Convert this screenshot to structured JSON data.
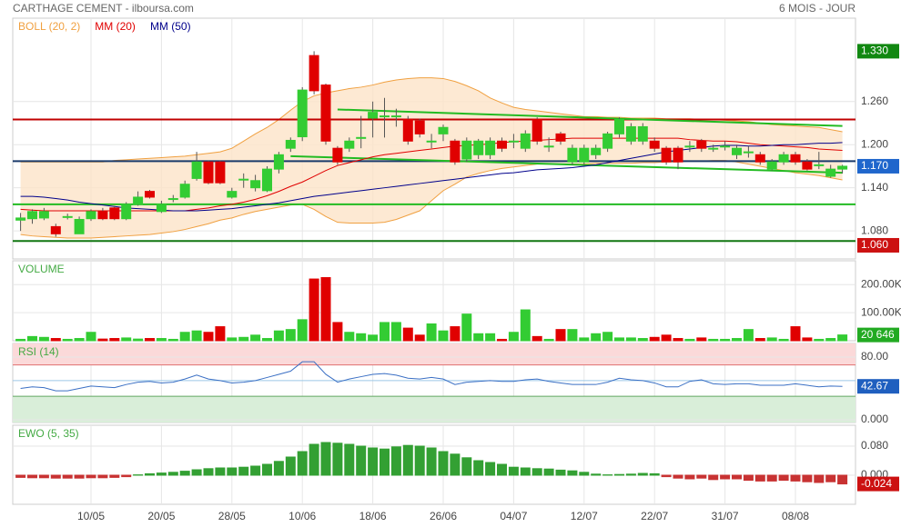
{
  "header": {
    "title": "CARTHAGE CEMENT - ilboursa.com",
    "period": "6 MOIS - JOUR"
  },
  "chart_data": [
    {
      "type": "candlestick",
      "up_color": "#33cc33",
      "down_color": "#e00000",
      "open": [
        1.095,
        1.097,
        1.098,
        1.086,
        1.1,
        1.076,
        1.097,
        1.107,
        1.112,
        1.097,
        1.117,
        1.135,
        1.107,
        1.125,
        1.127,
        1.153,
        1.176,
        1.176,
        1.127,
        1.152,
        1.14,
        1.136,
        1.166,
        1.195,
        1.211,
        1.324,
        1.283,
        1.195,
        1.195,
        1.21,
        1.237,
        1.24,
        1.24,
        1.235,
        1.233,
        1.205,
        1.215,
        1.205,
        1.18,
        1.186,
        1.186,
        1.205,
        1.205,
        1.195,
        1.235,
        1.198,
        1.215,
        1.176,
        1.176,
        1.186,
        1.195,
        1.215,
        1.205,
        1.205,
        1.205,
        1.195,
        1.195,
        1.198,
        1.205,
        1.195,
        1.198,
        1.186,
        1.19,
        1.186,
        1.166,
        1.176,
        1.186,
        1.176,
        1.172,
        1.156,
        1.166
      ],
      "high": [
        1.105,
        1.11,
        1.112,
        1.09,
        1.104,
        1.1,
        1.11,
        1.112,
        1.115,
        1.12,
        1.135,
        1.137,
        1.122,
        1.13,
        1.15,
        1.19,
        1.178,
        1.178,
        1.14,
        1.16,
        1.158,
        1.17,
        1.19,
        1.21,
        1.28,
        1.33,
        1.285,
        1.198,
        1.21,
        1.24,
        1.26,
        1.265,
        1.25,
        1.24,
        1.236,
        1.215,
        1.228,
        1.208,
        1.21,
        1.208,
        1.21,
        1.21,
        1.215,
        1.22,
        1.238,
        1.21,
        1.218,
        1.2,
        1.2,
        1.2,
        1.218,
        1.238,
        1.23,
        1.23,
        1.21,
        1.198,
        1.198,
        1.205,
        1.208,
        1.2,
        1.205,
        1.2,
        1.198,
        1.19,
        1.18,
        1.19,
        1.19,
        1.18,
        1.19,
        1.172,
        1.172
      ],
      "low": [
        1.08,
        1.09,
        1.095,
        1.072,
        1.096,
        1.076,
        1.094,
        1.095,
        1.095,
        1.095,
        1.115,
        1.125,
        1.105,
        1.12,
        1.125,
        1.15,
        1.145,
        1.145,
        1.125,
        1.14,
        1.135,
        1.134,
        1.16,
        1.19,
        1.205,
        1.27,
        1.2,
        1.172,
        1.19,
        1.195,
        1.21,
        1.21,
        1.225,
        1.2,
        1.21,
        1.195,
        1.205,
        1.172,
        1.176,
        1.18,
        1.18,
        1.19,
        1.195,
        1.19,
        1.2,
        1.19,
        1.2,
        1.172,
        1.172,
        1.18,
        1.19,
        1.21,
        1.2,
        1.2,
        1.19,
        1.172,
        1.166,
        1.19,
        1.19,
        1.19,
        1.192,
        1.18,
        1.182,
        1.172,
        1.164,
        1.172,
        1.172,
        1.164,
        1.166,
        1.154,
        1.16
      ],
      "close": [
        1.098,
        1.107,
        1.107,
        1.076,
        1.1,
        1.096,
        1.107,
        1.097,
        1.097,
        1.117,
        1.127,
        1.127,
        1.117,
        1.125,
        1.145,
        1.176,
        1.147,
        1.147,
        1.135,
        1.152,
        1.15,
        1.166,
        1.186,
        1.206,
        1.276,
        1.275,
        1.205,
        1.176,
        1.205,
        1.21,
        1.245,
        1.24,
        1.24,
        1.205,
        1.215,
        1.205,
        1.224,
        1.176,
        1.205,
        1.205,
        1.205,
        1.195,
        1.205,
        1.215,
        1.205,
        1.198,
        1.205,
        1.195,
        1.195,
        1.195,
        1.215,
        1.235,
        1.225,
        1.225,
        1.195,
        1.176,
        1.176,
        1.198,
        1.195,
        1.195,
        1.198,
        1.195,
        1.19,
        1.176,
        1.176,
        1.186,
        1.176,
        1.166,
        1.172,
        1.166,
        1.17
      ],
      "series": [
        {
          "name": "BOLL (20, 2)",
          "color": "#f0a040",
          "fill": "#fde3c8",
          "upper": [
            1.176,
            1.176,
            1.176,
            1.176,
            1.176,
            1.176,
            1.176,
            1.176,
            1.178,
            1.179,
            1.18,
            1.181,
            1.182,
            1.183,
            1.184,
            1.186,
            1.188,
            1.19,
            1.195,
            1.205,
            1.215,
            1.224,
            1.235,
            1.248,
            1.26,
            1.268,
            1.272,
            1.275,
            1.278,
            1.28,
            1.283,
            1.287,
            1.29,
            1.292,
            1.293,
            1.293,
            1.292,
            1.288,
            1.282,
            1.275,
            1.265,
            1.258,
            1.252,
            1.249,
            1.247,
            1.245,
            1.243,
            1.241,
            1.239,
            1.239,
            1.238,
            1.238,
            1.237,
            1.237,
            1.237,
            1.236,
            1.236,
            1.236,
            1.235,
            1.235,
            1.234,
            1.233,
            1.232,
            1.23,
            1.228,
            1.227,
            1.226,
            1.225,
            1.224,
            1.221,
            1.218
          ],
          "lower": [
            1.075,
            1.073,
            1.072,
            1.071,
            1.07,
            1.07,
            1.07,
            1.071,
            1.072,
            1.073,
            1.074,
            1.075,
            1.077,
            1.079,
            1.082,
            1.086,
            1.09,
            1.095,
            1.098,
            1.103,
            1.107,
            1.11,
            1.113,
            1.116,
            1.117,
            1.11,
            1.1,
            1.092,
            1.091,
            1.091,
            1.091,
            1.092,
            1.096,
            1.102,
            1.108,
            1.122,
            1.136,
            1.145,
            1.155,
            1.16,
            1.164,
            1.167,
            1.169,
            1.171,
            1.173,
            1.173,
            1.173,
            1.173,
            1.173,
            1.174,
            1.174,
            1.174,
            1.174,
            1.175,
            1.175,
            1.176,
            1.176,
            1.177,
            1.177,
            1.178,
            1.178,
            1.176,
            1.173,
            1.17,
            1.167,
            1.164,
            1.161,
            1.159,
            1.157,
            1.154,
            1.151
          ]
        },
        {
          "name": "MM (20)",
          "color": "#e00000",
          "values": [
            1.11,
            1.109,
            1.108,
            1.108,
            1.108,
            1.108,
            1.108,
            1.108,
            1.108,
            1.108,
            1.108,
            1.108,
            1.108,
            1.108,
            1.108,
            1.11,
            1.112,
            1.115,
            1.117,
            1.12,
            1.124,
            1.129,
            1.135,
            1.142,
            1.148,
            1.156,
            1.164,
            1.171,
            1.175,
            1.179,
            1.183,
            1.186,
            1.188,
            1.19,
            1.192,
            1.194,
            1.196,
            1.198,
            1.199,
            1.2,
            1.201,
            1.203,
            1.204,
            1.205,
            1.206,
            1.207,
            1.208,
            1.209,
            1.209,
            1.209,
            1.209,
            1.209,
            1.209,
            1.209,
            1.209,
            1.209,
            1.209,
            1.207,
            1.206,
            1.205,
            1.205,
            1.204,
            1.202,
            1.2,
            1.199,
            1.198,
            1.197,
            1.196,
            1.194,
            1.193,
            1.192
          ]
        },
        {
          "name": "MM (50)",
          "color": "#00008b",
          "values": [
            1.128,
            1.128,
            1.127,
            1.125,
            1.123,
            1.12,
            1.118,
            1.116,
            1.114,
            1.112,
            1.111,
            1.11,
            1.109,
            1.108,
            1.108,
            1.108,
            1.109,
            1.11,
            1.111,
            1.113,
            1.115,
            1.117,
            1.119,
            1.122,
            1.125,
            1.128,
            1.13,
            1.132,
            1.134,
            1.136,
            1.138,
            1.14,
            1.142,
            1.144,
            1.146,
            1.148,
            1.15,
            1.152,
            1.154,
            1.156,
            1.158,
            1.16,
            1.161,
            1.163,
            1.165,
            1.166,
            1.167,
            1.168,
            1.17,
            1.172,
            1.175,
            1.178,
            1.181,
            1.184,
            1.187,
            1.19,
            1.192,
            1.194,
            1.196,
            1.198,
            1.199,
            1.199,
            1.198,
            1.198,
            1.199,
            1.2,
            1.2,
            1.201,
            1.202,
            1.202,
            1.203
          ]
        }
      ],
      "ylim": [
        1.041,
        1.376
      ],
      "yticks": [
        {
          "value": 1.08,
          "label": "1.080"
        },
        {
          "value": 1.14,
          "label": "1.140"
        },
        {
          "value": 1.2,
          "label": "1.200"
        },
        {
          "value": 1.26,
          "label": "1.260"
        }
      ],
      "hlines": [
        {
          "value": 1.235,
          "color": "#c00000"
        },
        {
          "value": 1.177,
          "color": "#1a3a6a"
        },
        {
          "value": 1.117,
          "color": "#22bb22"
        },
        {
          "value": 1.066,
          "color": "#117711"
        }
      ],
      "trendlines": [
        {
          "from": [
            27,
            1.249
          ],
          "to": [
            70,
            1.226
          ],
          "color": "#22bb22"
        },
        {
          "from": [
            23,
            1.184
          ],
          "to": [
            70,
            1.161
          ],
          "color": "#22bb22"
        }
      ],
      "markers": [
        {
          "value": 1.33,
          "label": "1.330",
          "color": "#118811"
        },
        {
          "value": 1.17,
          "label": "1.170",
          "color": "#1f66cc"
        },
        {
          "value": 1.06,
          "label": "1.060",
          "color": "#cc1111"
        }
      ]
    },
    {
      "type": "bar",
      "title": "VOLUME",
      "values": [
        5000,
        15000,
        12000,
        8000,
        5000,
        8000,
        30000,
        6000,
        8000,
        10000,
        6000,
        8000,
        8000,
        5000,
        30000,
        35000,
        30000,
        50000,
        10000,
        12000,
        20000,
        8000,
        35000,
        40000,
        75000,
        220000,
        225000,
        65000,
        30000,
        25000,
        20000,
        65000,
        65000,
        45000,
        20000,
        60000,
        35000,
        50000,
        95000,
        25000,
        25000,
        5000,
        30000,
        110000,
        15000,
        5000,
        40000,
        40000,
        10000,
        25000,
        30000,
        10000,
        10000,
        8000,
        12000,
        20000,
        8000,
        5000,
        10000,
        5000,
        5000,
        8000,
        40000,
        8000,
        10000,
        5000,
        50000,
        10000,
        5000,
        8000,
        20646
      ],
      "last_value_label": "20 646",
      "box_color": "#22aa22",
      "ylim": [
        0,
        285000
      ],
      "yticks": [
        {
          "value": 100000,
          "label": "100.00K"
        },
        {
          "value": 200000,
          "label": "200.00K"
        }
      ]
    },
    {
      "type": "line",
      "title": "RSI (14)",
      "color": "#3a6fc4",
      "box_color": "#1f5fbf",
      "values": [
        40,
        42,
        41,
        37,
        37,
        40,
        43,
        42,
        41,
        45,
        48,
        49,
        47,
        48,
        52,
        57,
        52,
        50,
        47,
        48,
        50,
        54,
        58,
        62,
        74,
        74,
        58,
        48,
        52,
        55,
        58,
        59,
        57,
        53,
        52,
        54,
        52,
        45,
        48,
        49,
        50,
        49,
        49,
        51,
        52,
        49,
        47,
        45,
        45,
        45,
        48,
        53,
        51,
        50,
        47,
        42,
        42,
        49,
        51,
        46,
        45,
        46,
        46,
        44,
        44,
        44,
        46,
        44,
        42,
        43,
        42.67
      ],
      "overbought": 70,
      "oversold": 30,
      "midline": 50,
      "ylim": [
        -3.5,
        97.4
      ],
      "yticks": [
        {
          "value": 0,
          "label": "0.000"
        },
        {
          "value": 80,
          "label": "80.00"
        }
      ]
    },
    {
      "type": "bar",
      "title": "EWO (5, 35)",
      "pos_color": "#33a033",
      "neg_color": "#c83232",
      "box_color": "#cc1111",
      "values": [
        -0.006,
        -0.007,
        -0.007,
        -0.008,
        -0.008,
        -0.008,
        -0.007,
        -0.007,
        -0.006,
        -0.004,
        0.001,
        0.004,
        0.006,
        0.008,
        0.011,
        0.015,
        0.018,
        0.02,
        0.02,
        0.022,
        0.025,
        0.03,
        0.038,
        0.05,
        0.065,
        0.085,
        0.09,
        0.088,
        0.085,
        0.08,
        0.075,
        0.072,
        0.078,
        0.082,
        0.08,
        0.075,
        0.065,
        0.058,
        0.048,
        0.04,
        0.035,
        0.03,
        0.022,
        0.02,
        0.018,
        0.017,
        0.014,
        0.012,
        0.008,
        0.003,
        0.001,
        0.002,
        0.003,
        0.005,
        0.004,
        -0.004,
        -0.008,
        -0.01,
        -0.008,
        -0.012,
        -0.01,
        -0.01,
        -0.014,
        -0.016,
        -0.016,
        -0.014,
        -0.016,
        -0.018,
        -0.02,
        -0.018,
        -0.024
      ],
      "ylim": [
        -0.08,
        0.1375
      ],
      "yticks": [
        {
          "value": 0,
          "label": "0.000"
        },
        {
          "value": 0.08,
          "label": "0.080"
        }
      ],
      "categories": [
        null,
        null,
        null,
        null,
        null,
        null,
        "10/05",
        null,
        null,
        null,
        null,
        null,
        "20/05",
        null,
        null,
        null,
        null,
        null,
        "28/05",
        null,
        null,
        null,
        null,
        null,
        "10/06",
        null,
        null,
        null,
        null,
        null,
        "18/06",
        null,
        null,
        null,
        null,
        null,
        "26/06",
        null,
        null,
        null,
        null,
        null,
        "04/07",
        null,
        null,
        null,
        null,
        null,
        "12/07",
        null,
        null,
        null,
        null,
        null,
        "22/07",
        null,
        null,
        null,
        null,
        null,
        "31/07",
        null,
        null,
        null,
        null,
        null,
        "08/08",
        null,
        null,
        null,
        null
      ]
    }
  ]
}
